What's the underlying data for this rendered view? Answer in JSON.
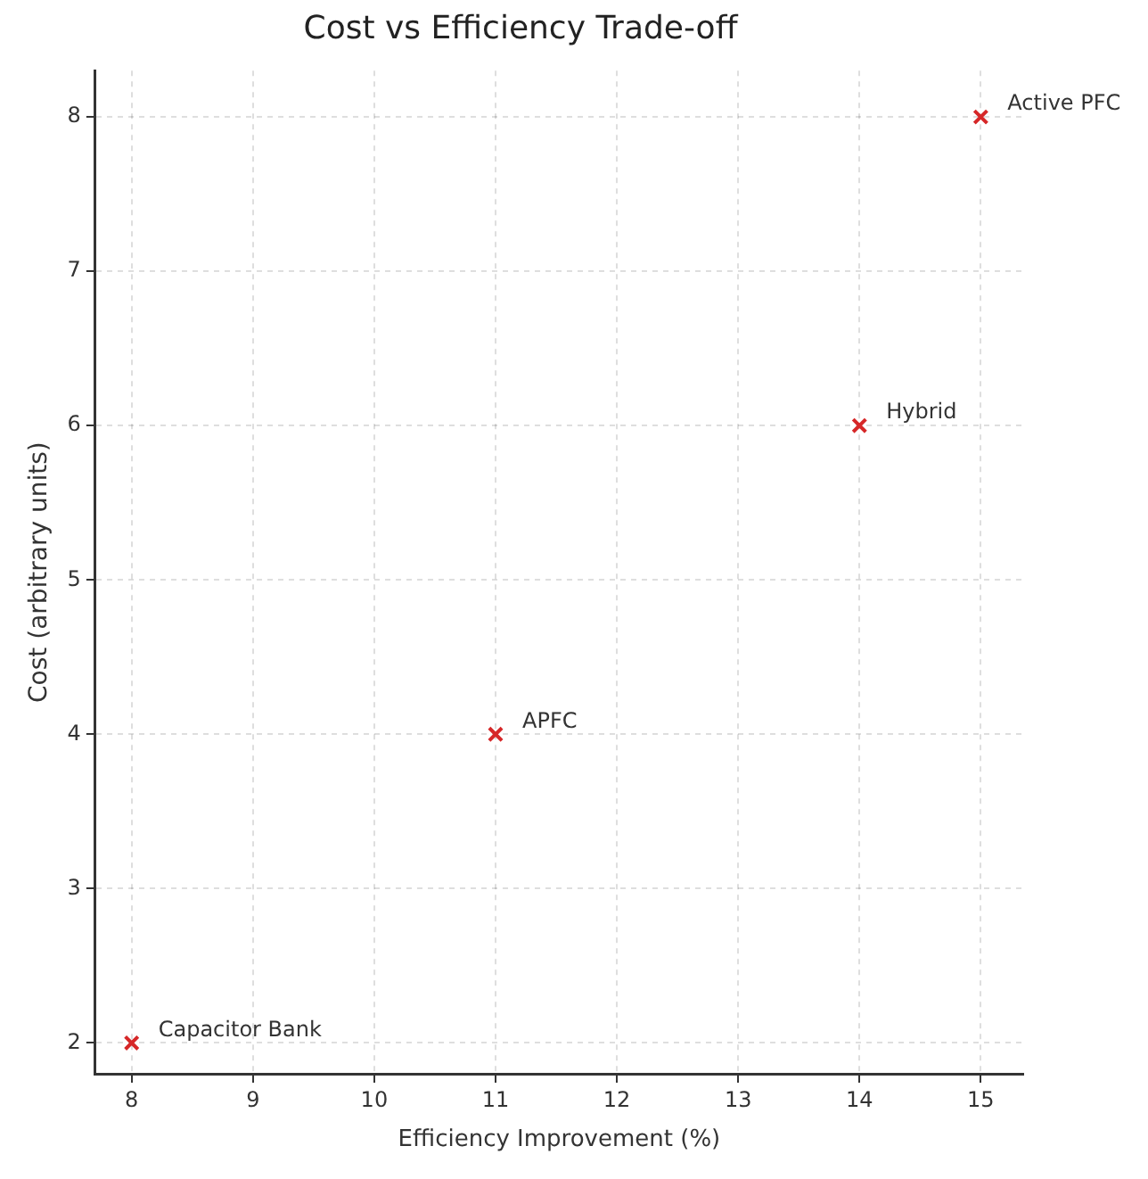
{
  "chart_data": {
    "type": "scatter",
    "title": "Cost vs Efficiency Trade-off",
    "xlabel": "Efficiency Improvement (%)",
    "ylabel": "Cost (arbitrary units)",
    "x": [
      8,
      11,
      14,
      15
    ],
    "series": [
      {
        "color": "#d62728",
        "values": [
          2,
          4,
          6,
          8
        ]
      }
    ],
    "annotations": [
      {
        "text": "Capacitor Bank",
        "x": 8,
        "y": 2
      },
      {
        "text": "APFC",
        "x": 11,
        "y": 4
      },
      {
        "text": "Hybrid",
        "x": 14,
        "y": 6
      },
      {
        "text": "Active PFC",
        "x": 15,
        "y": 8
      }
    ],
    "xlim": [
      7.7,
      15.35
    ],
    "ylim": [
      1.8,
      8.3
    ],
    "xticks": [
      8,
      9,
      10,
      11,
      12,
      13,
      14,
      15
    ],
    "yticks": [
      2,
      3,
      4,
      5,
      6,
      7,
      8
    ],
    "grid": true,
    "marker": "cross",
    "legend": false
  }
}
